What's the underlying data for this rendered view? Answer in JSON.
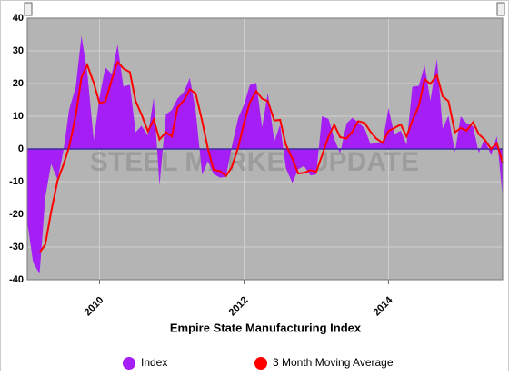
{
  "chart_data": {
    "type": "area_line",
    "title": "Empire State Manufacturing Index",
    "watermark": "STEEL MARKET UPDATE",
    "x": [
      2009,
      2009.08,
      2009.17,
      2009.25,
      2009.33,
      2009.42,
      2009.5,
      2009.58,
      2009.67,
      2009.75,
      2009.83,
      2009.92,
      2010,
      2010.08,
      2010.17,
      2010.25,
      2010.33,
      2010.42,
      2010.5,
      2010.58,
      2010.67,
      2010.75,
      2010.83,
      2010.92,
      2011,
      2011.08,
      2011.17,
      2011.25,
      2011.33,
      2011.42,
      2011.5,
      2011.58,
      2011.67,
      2011.75,
      2011.83,
      2011.92,
      2012,
      2012.08,
      2012.17,
      2012.25,
      2012.33,
      2012.42,
      2012.5,
      2012.58,
      2012.67,
      2012.75,
      2012.83,
      2012.92,
      2013,
      2013.08,
      2013.17,
      2013.25,
      2013.33,
      2013.42,
      2013.5,
      2013.58,
      2013.67,
      2013.75,
      2013.83,
      2013.92,
      2014,
      2014.08,
      2014.17,
      2014.25,
      2014.33,
      2014.42,
      2014.5,
      2014.58,
      2014.67,
      2014.75,
      2014.83,
      2014.92,
      2015,
      2015.08,
      2015.17,
      2015.25,
      2015.33,
      2015.42,
      2015.5,
      2015.58
    ],
    "series": [
      {
        "name": "Index",
        "color": "#a51ef5",
        "values": [
          -22.2,
          -34.7,
          -38.2,
          -14.7,
          -4.6,
          -9.4,
          -0.6,
          12.1,
          18.9,
          34.6,
          23.5,
          2.6,
          15.9,
          24.9,
          22.9,
          31.9,
          19.1,
          19.6,
          5.1,
          7.1,
          4.1,
          15.7,
          -11.1,
          10.6,
          11.9,
          15.4,
          17.5,
          21.7,
          11.9,
          -7.8,
          -3.8,
          -7.7,
          -8.8,
          -8.5,
          0.6,
          9.5,
          13.5,
          19.5,
          20.2,
          6.6,
          17.1,
          2.3,
          7.4,
          -5.9,
          -10.4,
          -6.2,
          -5.2,
          -8.1,
          -7.8,
          10.0,
          9.2,
          3.1,
          -1.4,
          7.8,
          9.5,
          8.2,
          6.3,
          1.5,
          1.9,
          2.2,
          12.5,
          4.5,
          5.6,
          1.3,
          19.0,
          19.3,
          25.6,
          14.7,
          27.5,
          6.2,
          10.2,
          -1.0,
          10.0,
          7.8,
          6.9,
          -1.2,
          3.1,
          -2.0,
          3.9,
          -14.9
        ]
      },
      {
        "name": "3 Month Moving Average",
        "color": "#ff0000",
        "values": [
          null,
          null,
          -31.7,
          -29.2,
          -19.2,
          -9.6,
          -4.9,
          0.7,
          10.1,
          21.9,
          25.7,
          20.2,
          14.0,
          14.5,
          21.2,
          26.6,
          24.6,
          23.5,
          14.6,
          10.6,
          5.4,
          9.0,
          2.9,
          5.1,
          3.8,
          12.6,
          14.9,
          18.2,
          17.0,
          8.6,
          0.1,
          -6.4,
          -6.8,
          -8.3,
          -5.6,
          0.5,
          7.9,
          14.2,
          17.7,
          15.4,
          14.6,
          8.7,
          8.9,
          1.3,
          -3.0,
          -7.5,
          -7.3,
          -6.5,
          -7.0,
          -2.0,
          3.8,
          7.4,
          3.6,
          3.2,
          5.3,
          8.5,
          8.0,
          5.3,
          3.2,
          1.9,
          5.5,
          6.4,
          7.5,
          3.8,
          8.6,
          13.2,
          21.3,
          19.9,
          22.6,
          16.1,
          14.6,
          5.1,
          6.4,
          5.6,
          8.2,
          4.5,
          2.9,
          0.0,
          1.7,
          -4.3
        ]
      }
    ],
    "xlim": [
      2009,
      2015.58
    ],
    "xticks": [
      2010,
      2012,
      2014
    ],
    "ylim": [
      -40,
      40
    ],
    "yticks": [
      -40,
      -30,
      -20,
      -10,
      0,
      10,
      20,
      30,
      40
    ],
    "grid": true,
    "legend": "bottom"
  }
}
